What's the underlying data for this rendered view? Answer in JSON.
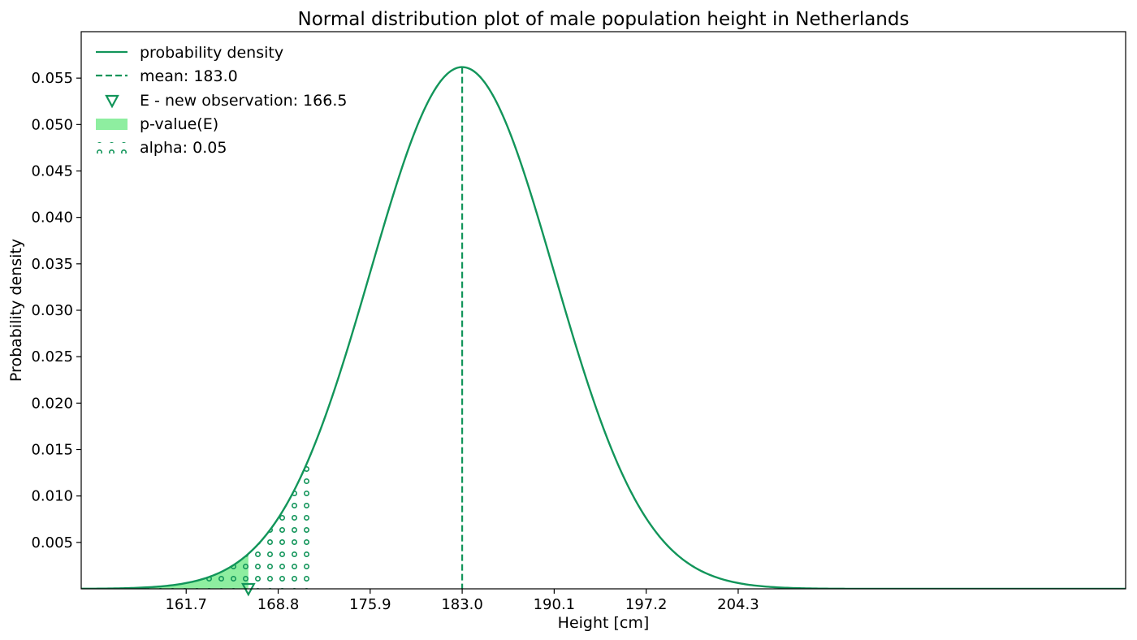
{
  "chart_data": {
    "type": "line",
    "title": "Normal distribution plot of male population height in Netherlands",
    "xlabel": "Height [cm]",
    "ylabel": "Probability density",
    "xlim": [
      153.6,
      234.2
    ],
    "ylim": [
      0.0,
      0.06
    ],
    "x_ticks": [
      "161.7",
      "168.8",
      "175.9",
      "183.0",
      "190.1",
      "197.2",
      "204.3"
    ],
    "y_ticks": [
      "0.005",
      "0.010",
      "0.015",
      "0.020",
      "0.025",
      "0.030",
      "0.035",
      "0.040",
      "0.045",
      "0.050",
      "0.055"
    ],
    "distribution": {
      "mean": 183.0,
      "std": 7.1
    },
    "observation": 166.5,
    "alpha_cutoff": 171.32,
    "legend_position": "upper-left",
    "grid": false,
    "colors": {
      "line": "#12955a",
      "pvalue_fill": "#8eeea0",
      "hatch": "#12955a"
    },
    "legend": [
      {
        "label": "probability density",
        "kind": "line"
      },
      {
        "label": "mean: 183.0",
        "kind": "dashed"
      },
      {
        "label": "E - new observation: 166.5",
        "kind": "marker"
      },
      {
        "label": "p-value(E)",
        "kind": "fill"
      },
      {
        "label": "alpha: 0.05",
        "kind": "hatch"
      }
    ]
  }
}
